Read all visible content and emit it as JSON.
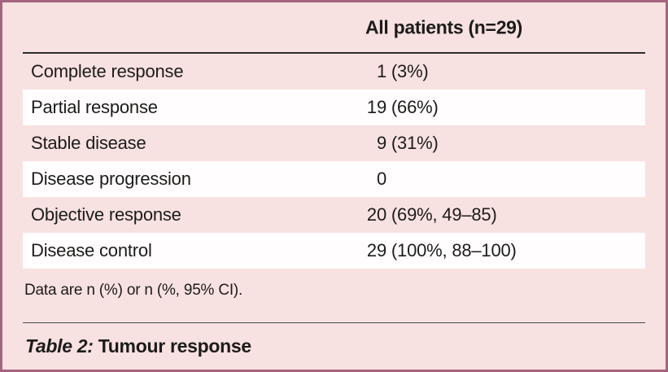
{
  "table": {
    "header": {
      "column_label": "All patients (n=29)"
    },
    "rows": [
      {
        "label": "Complete response",
        "n": "1",
        "rest": " (3%)"
      },
      {
        "label": "Partial response",
        "n": "19",
        "rest": " (66%)"
      },
      {
        "label": "Stable disease",
        "n": "9",
        "rest": " (31%)"
      },
      {
        "label": "Disease progression",
        "n": "0",
        "rest": ""
      },
      {
        "label": "Objective response",
        "n": "20",
        "rest": " (69%, 49–85)"
      },
      {
        "label": "Disease control",
        "n": "29",
        "rest": " (100%, 88–100)"
      }
    ],
    "footnote": "Data are n (%) or n (%, 95% CI).",
    "caption": {
      "prefix": "Table 2:",
      "title": " Tumour response"
    }
  },
  "colors": {
    "outer_border": "#a4647f",
    "background_pink": "#f8e1e1",
    "row_band_white": "#fffdfd",
    "heavy_rule": "#2e2e2e",
    "thin_rule": "#4a4a4a",
    "text": "#1c1c1a"
  }
}
